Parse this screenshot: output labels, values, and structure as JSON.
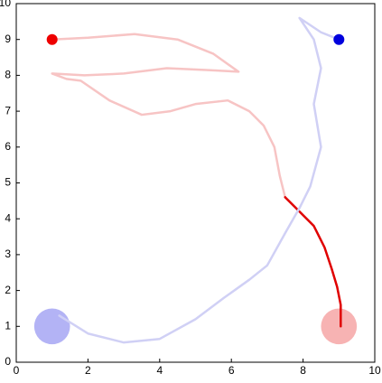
{
  "chart_data": {
    "type": "line",
    "xlim": [
      0,
      10
    ],
    "ylim": [
      0,
      10
    ],
    "xticks": [
      0,
      2,
      4,
      6,
      8,
      10
    ],
    "yticks": [
      0,
      1,
      2,
      3,
      4,
      5,
      6,
      7,
      8,
      9,
      10
    ],
    "series": [
      {
        "color": "#f7c4c4",
        "x": [
          1,
          2,
          3.3,
          4.5,
          5.5,
          6.2,
          5.3,
          4.2,
          3,
          1.9,
          1,
          1.4,
          1.8,
          2.6,
          3.5,
          4.3,
          5,
          5.9,
          6.5,
          6.9,
          7.2,
          7.35,
          7.5
        ],
        "values": [
          9,
          9.05,
          9.15,
          9.0,
          8.6,
          8.1,
          8.15,
          8.2,
          8.05,
          8.0,
          8.05,
          7.9,
          7.85,
          7.3,
          6.9,
          7.0,
          7.2,
          7.3,
          7.0,
          6.6,
          6.0,
          5.2,
          4.6
        ]
      },
      {
        "color": "#e00000",
        "x": [
          7.5,
          7.8,
          8.3,
          8.6,
          8.8,
          8.95,
          9.05,
          9.05
        ],
        "values": [
          4.6,
          4.3,
          3.8,
          3.2,
          2.6,
          2.1,
          1.6,
          1.0
        ]
      },
      {
        "color": "#d0d0f5",
        "x": [
          9,
          8.5,
          7.9,
          8.3,
          8.5,
          8.3,
          8.5,
          8.2,
          7.9,
          7.5,
          7.0,
          6.5,
          5.8,
          5.0,
          4.0,
          3.0,
          2.0,
          1.2
        ],
        "values": [
          9,
          9.2,
          9.6,
          9.0,
          8.2,
          7.2,
          6.0,
          4.9,
          4.3,
          3.6,
          2.7,
          2.3,
          1.8,
          1.2,
          0.65,
          0.55,
          0.8,
          1.3
        ]
      }
    ],
    "starts": [
      {
        "x": 1,
        "y": 9,
        "color": "#ee0000"
      },
      {
        "x": 9,
        "y": 9,
        "color": "#0000dd"
      }
    ],
    "goals": [
      {
        "x": 1,
        "y": 1,
        "radius": 0.5,
        "color": "#b3b3f5"
      },
      {
        "x": 9,
        "y": 1,
        "radius": 0.5,
        "color": "#f7b3b3"
      }
    ]
  }
}
